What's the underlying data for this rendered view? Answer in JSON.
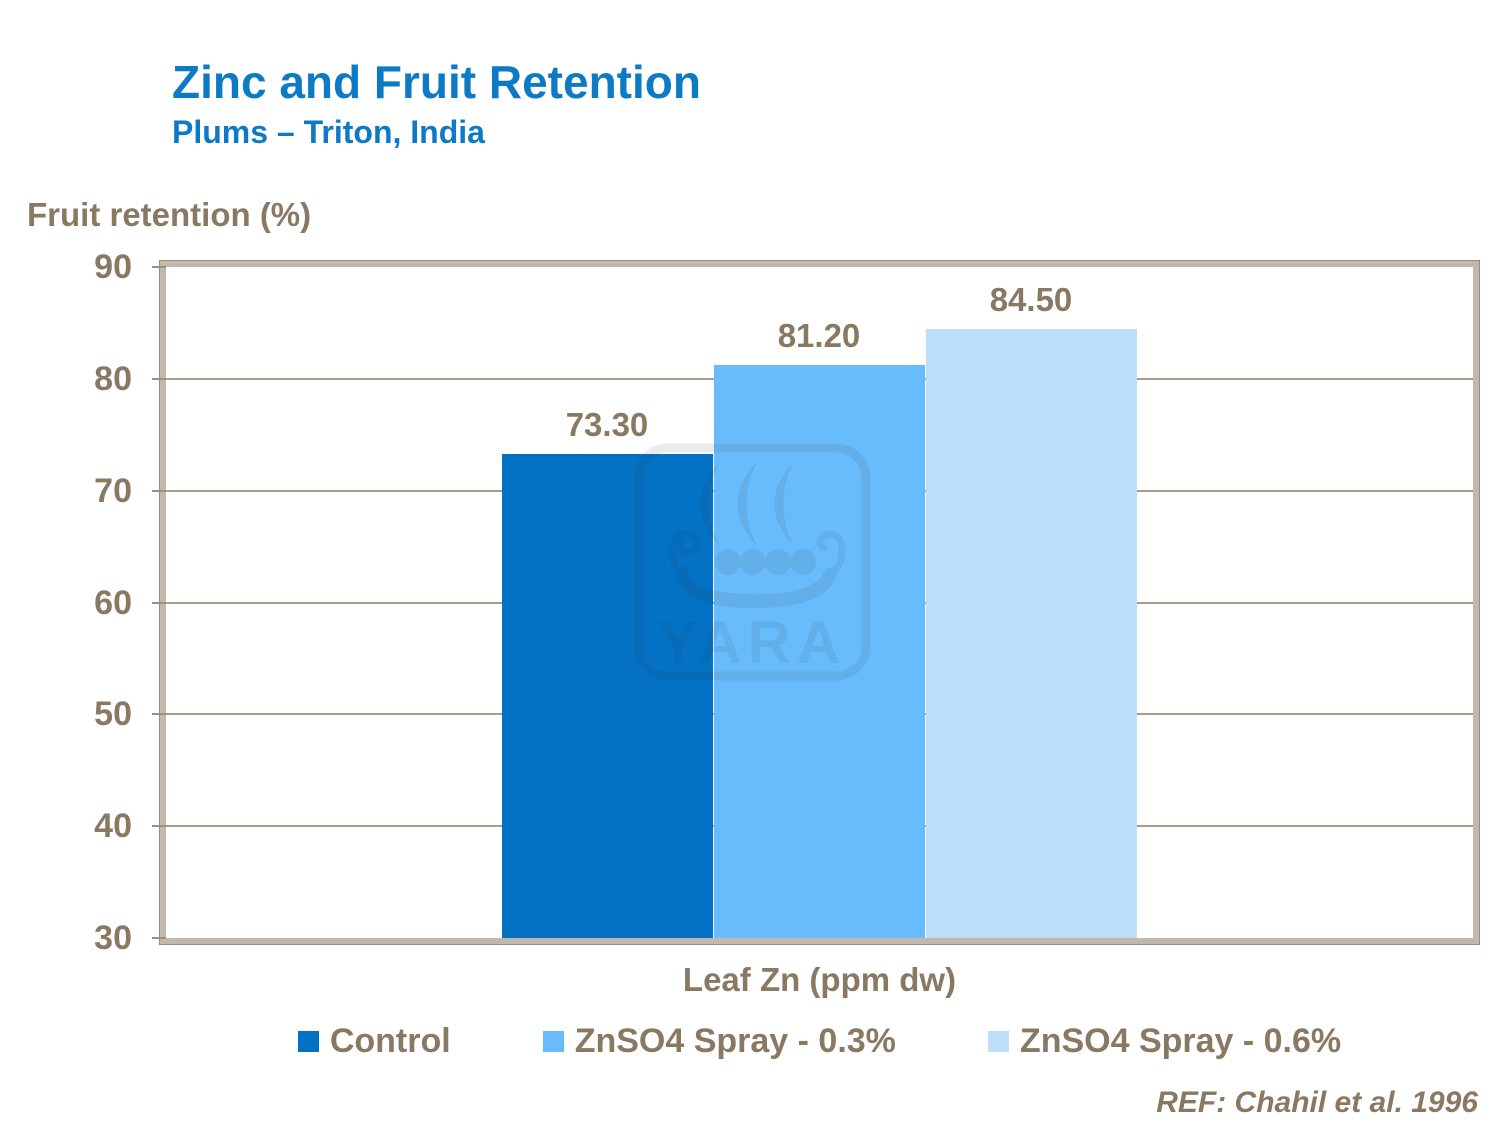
{
  "header": {
    "title": "Zinc and Fruit Retention",
    "subtitle": "Plums – Triton, India"
  },
  "chart_data": {
    "type": "bar",
    "title": "Zinc and Fruit Retention",
    "subtitle": "Plums – Triton, India",
    "ylabel": "Fruit retention (%)",
    "xlabel": "Leaf Zn (ppm dw)",
    "ylim": [
      30,
      90
    ],
    "yticks": [
      30,
      40,
      50,
      60,
      70,
      80,
      90
    ],
    "grid": true,
    "legend_position": "bottom",
    "categories": [
      "Control",
      "ZnSO4 Spray - 0.3%",
      "ZnSO4 Spray - 0.6%"
    ],
    "series": [
      {
        "name": "Control",
        "value": 73.3,
        "label": "73.30",
        "color": "#0372c4"
      },
      {
        "name": "ZnSO4 Spray - 0.3%",
        "value": 81.2,
        "label": "81.20",
        "color": "#68bcfb"
      },
      {
        "name": "ZnSO4 Spray - 0.6%",
        "value": 84.5,
        "label": "84.50",
        "color": "#bddef9"
      }
    ]
  },
  "watermark": {
    "icon": "yara-viking-ship-logo",
    "text": "YARA"
  },
  "footer": {
    "reference": "REF: Chahil et al. 1996"
  },
  "colors": {
    "title_blue": "#0d7ac6",
    "text_tan": "#897963",
    "frame": "#c3b8ad",
    "frame_dark": "#9c8d7d",
    "gridline": "#a89b8b",
    "background": "#ffffff"
  }
}
